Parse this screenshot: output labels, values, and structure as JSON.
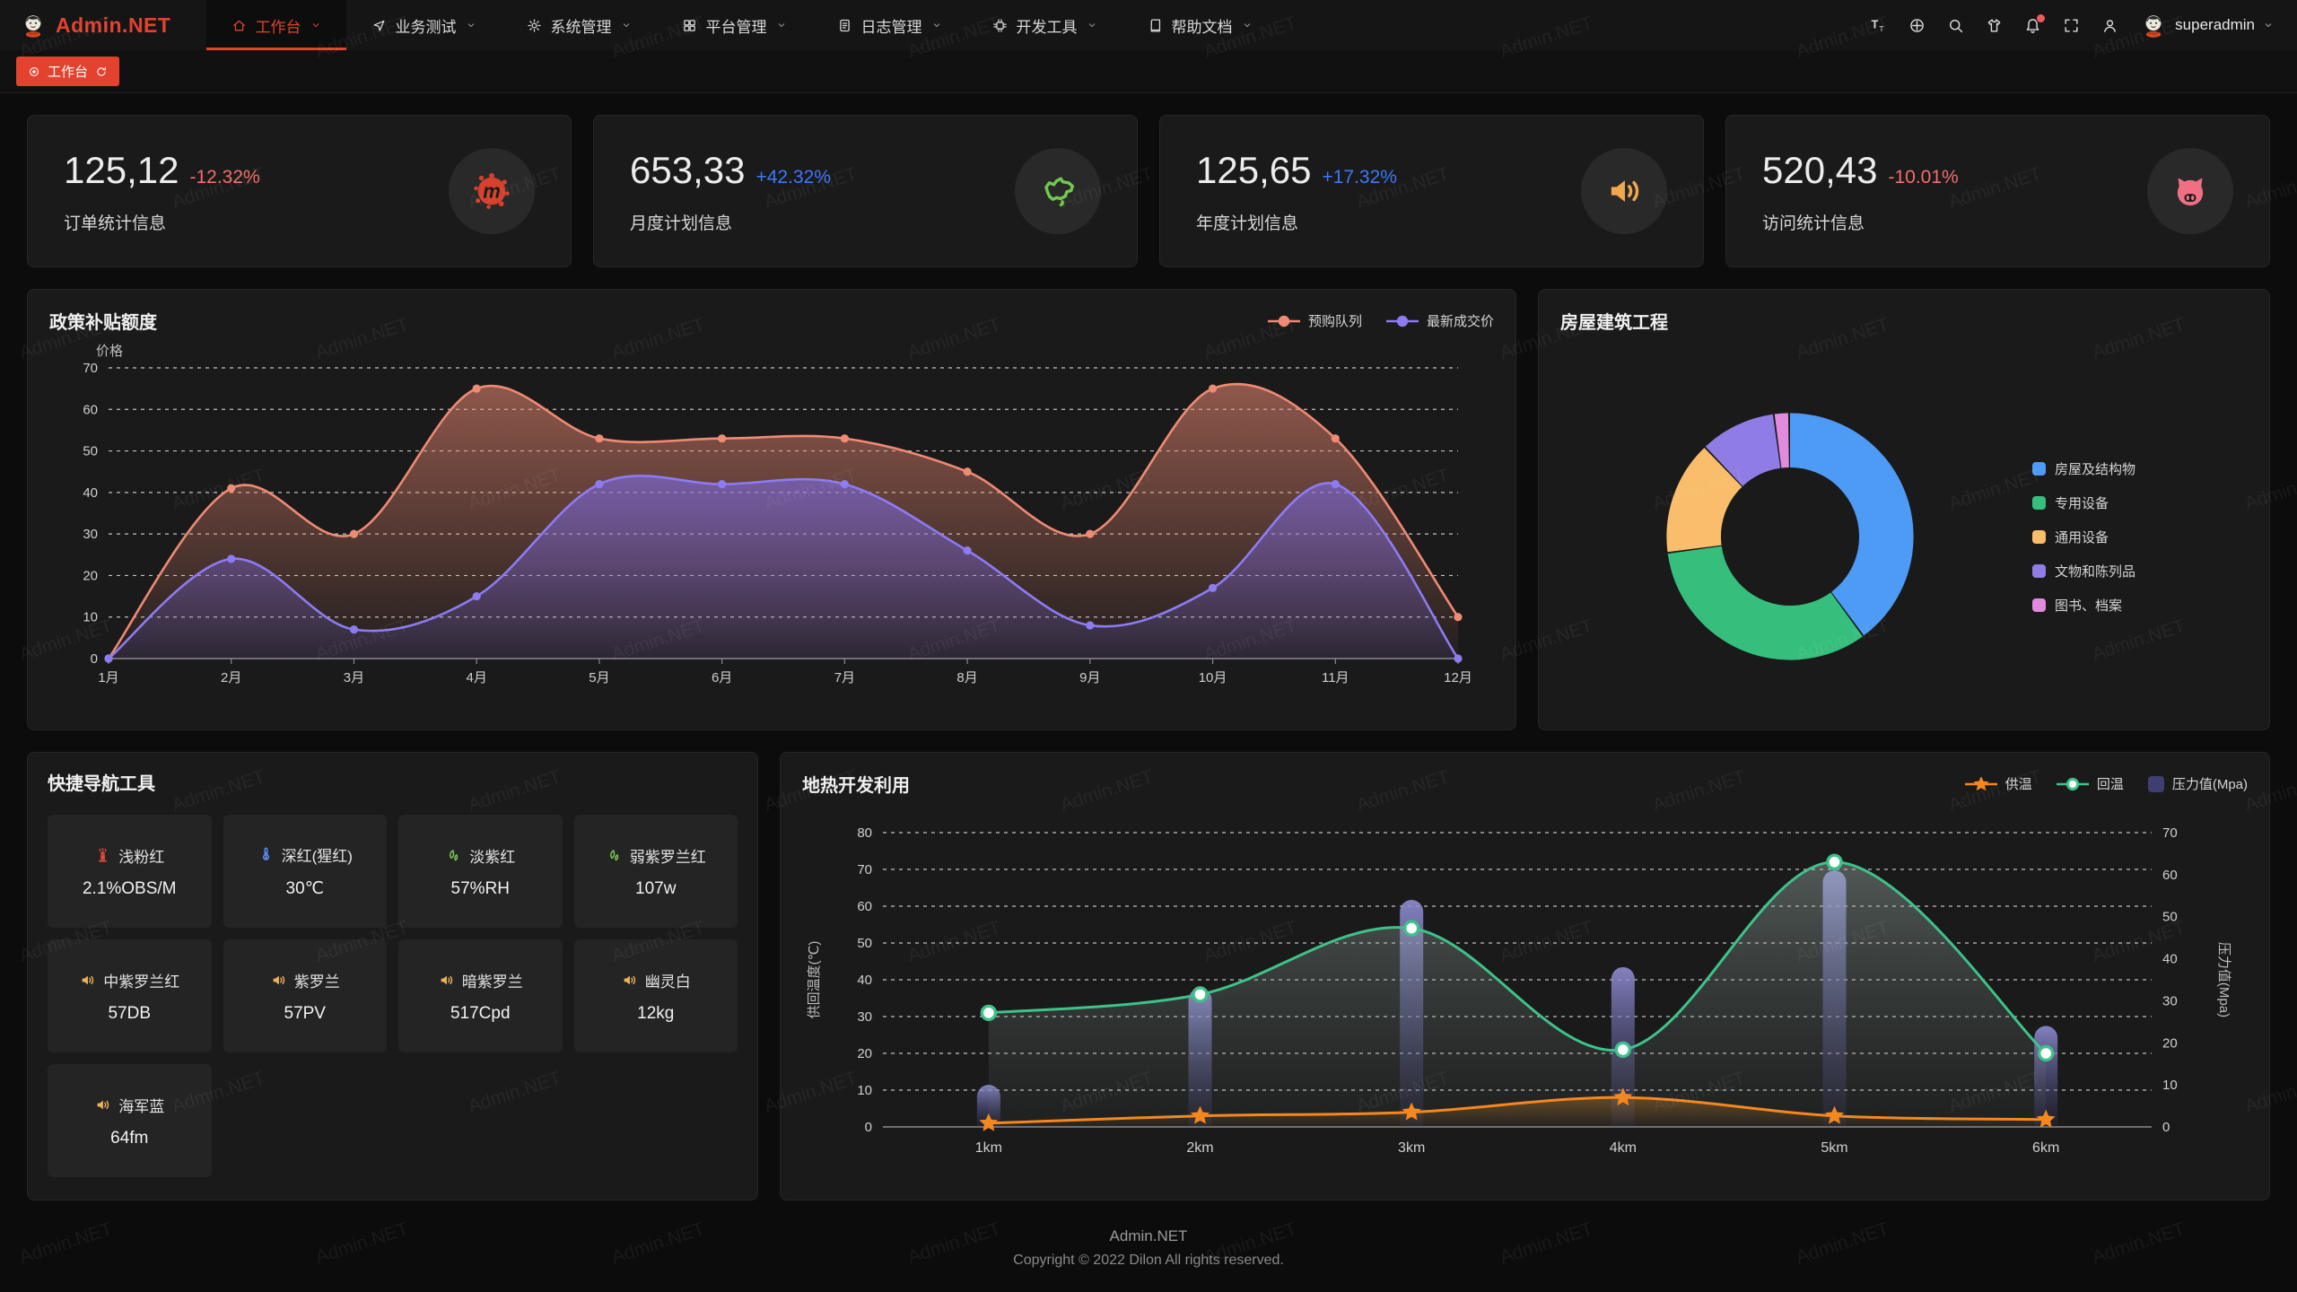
{
  "brand": {
    "name": "Admin.NET",
    "logo_icon": "mime-avatar-icon",
    "accent_color": "#e3422f"
  },
  "watermark": "Admin.NET",
  "navbar": {
    "items": [
      {
        "label": "工作台",
        "icon": "home-icon",
        "active": true
      },
      {
        "label": "业务测试",
        "icon": "nav-arrow-icon",
        "active": false
      },
      {
        "label": "系统管理",
        "icon": "gear-icon",
        "active": false
      },
      {
        "label": "平台管理",
        "icon": "grid-icon",
        "active": false
      },
      {
        "label": "日志管理",
        "icon": "file-icon",
        "active": false
      },
      {
        "label": "开发工具",
        "icon": "cpu-icon",
        "active": false
      },
      {
        "label": "帮助文档",
        "icon": "book-icon",
        "active": false
      }
    ],
    "right_icons": [
      "font-size-icon",
      "language-icon",
      "search-icon",
      "theme-shirt-icon",
      "bell-icon",
      "fullscreen-icon",
      "person-icon"
    ],
    "bell_has_badge": true,
    "user": {
      "name": "superadmin",
      "avatar_icon": "mime-avatar-icon"
    }
  },
  "tabbar": {
    "active_tab": "工作台",
    "tab_icons": [
      "dot-circle-icon",
      "refresh-icon"
    ]
  },
  "stats": [
    {
      "value": "125,12",
      "delta": "-12.32%",
      "trend": "down",
      "label": "订单统计信息",
      "icon": "meetup-splat-icon",
      "icon_color": "#d6402c"
    },
    {
      "value": "653,33",
      "delta": "+42.32%",
      "trend": "up",
      "label": "月度计划信息",
      "icon": "china-map-icon",
      "icon_color": "#6fca4c"
    },
    {
      "value": "125,65",
      "delta": "+17.32%",
      "trend": "up",
      "label": "年度计划信息",
      "icon": "speaker-icon",
      "icon_color": "#efa94c"
    },
    {
      "value": "520,43",
      "delta": "-10.01%",
      "trend": "down",
      "label": "访问统计信息",
      "icon": "cat-icon",
      "icon_color": "#ee7082"
    }
  ],
  "quick_nav": {
    "title": "快捷导航工具",
    "items": [
      {
        "icon": "hydrant-icon",
        "icon_color": "#e04b3b",
        "name": "浅粉红",
        "value": "2.1%OBS/M"
      },
      {
        "icon": "thermometer-icon",
        "icon_color": "#5b8ef7",
        "name": "深红(猩红)",
        "value": "30℃"
      },
      {
        "icon": "leaf-icon",
        "icon_color": "#7dc855",
        "name": "淡紫红",
        "value": "57%RH"
      },
      {
        "icon": "leaf-icon",
        "icon_color": "#7dc855",
        "name": "弱紫罗兰红",
        "value": "107w"
      },
      {
        "icon": "speaker-icon",
        "icon_color": "#efb35c",
        "name": "中紫罗兰红",
        "value": "57DB"
      },
      {
        "icon": "speaker-icon",
        "icon_color": "#efb35c",
        "name": "紫罗兰",
        "value": "57PV"
      },
      {
        "icon": "speaker-icon",
        "icon_color": "#efb35c",
        "name": "暗紫罗兰",
        "value": "517Cpd"
      },
      {
        "icon": "speaker-icon",
        "icon_color": "#efb35c",
        "name": "幽灵白",
        "value": "12kg"
      },
      {
        "icon": "speaker-icon",
        "icon_color": "#efb35c",
        "name": "海军蓝",
        "value": "64fm"
      }
    ]
  },
  "footer": {
    "line1": "Admin.NET",
    "line2": "Copyright © 2022 Dilon All rights reserved."
  },
  "chart_data": [
    {
      "id": "subsidy",
      "type": "line",
      "title": "政策补贴额度",
      "ylabel": "价格",
      "categories": [
        "1月",
        "2月",
        "3月",
        "4月",
        "5月",
        "6月",
        "7月",
        "8月",
        "9月",
        "10月",
        "11月",
        "12月"
      ],
      "series": [
        {
          "name": "预购队列",
          "color": "#ef8a74",
          "values": [
            0,
            41,
            30,
            65,
            53,
            53,
            53,
            45,
            30,
            65,
            53,
            10
          ]
        },
        {
          "name": "最新成交价",
          "color": "#8d7bf2",
          "values": [
            0,
            24,
            7,
            15,
            42,
            42,
            42,
            26,
            8,
            17,
            42,
            0
          ]
        }
      ],
      "ylim": [
        0,
        70
      ],
      "ystep": 10,
      "grid": "dashed",
      "legend_position": "top-right",
      "smooth": true
    },
    {
      "id": "building",
      "type": "pie",
      "title": "房屋建筑工程",
      "inner_radius": "58%",
      "legend_position": "right",
      "slices": [
        {
          "label": "房屋及结构物",
          "value": 40,
          "color": "#4d9bf5"
        },
        {
          "label": "专用设备",
          "value": 33,
          "color": "#36bf7c"
        },
        {
          "label": "通用设备",
          "value": 15,
          "color": "#f9bd6b"
        },
        {
          "label": "文物和陈列品",
          "value": 10,
          "color": "#8f7ce5"
        },
        {
          "label": "图书、档案",
          "value": 2,
          "color": "#e08bdc"
        }
      ]
    },
    {
      "id": "geothermal",
      "type": "line+bar",
      "title": "地热开发利用",
      "categories": [
        "1km",
        "2km",
        "3km",
        "4km",
        "5km",
        "6km"
      ],
      "left_axis": {
        "label": "供回温度(℃)",
        "min": 0,
        "max": 80,
        "step": 10
      },
      "right_axis": {
        "label": "压力值(Mpa)",
        "min": 0,
        "max": 70,
        "step": 10
      },
      "series": [
        {
          "name": "供温",
          "type": "line",
          "marker": "star",
          "color": "#f5871f",
          "axis": "left",
          "values": [
            1,
            3,
            4,
            8,
            3,
            2
          ]
        },
        {
          "name": "回温",
          "type": "line",
          "marker": "circle",
          "color": "#3ec28a",
          "axis": "left",
          "values": [
            31,
            36,
            54,
            21,
            72,
            20
          ]
        },
        {
          "name": "压力值(Mpa)",
          "type": "bar",
          "color": "#8b89d2",
          "axis": "right",
          "values": [
            10,
            33,
            54,
            38,
            61,
            24
          ]
        }
      ],
      "grid": "dashed",
      "legend_position": "top-right",
      "smooth": true
    }
  ]
}
